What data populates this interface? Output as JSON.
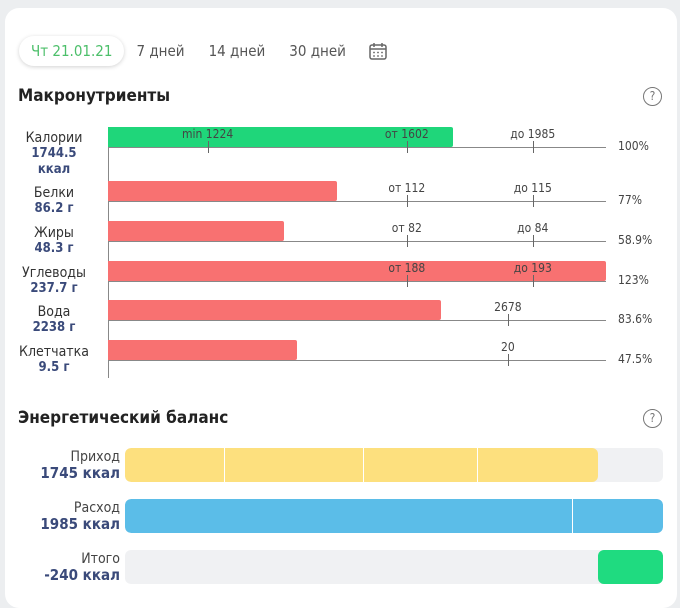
{
  "tabs": [
    {
      "label": "Чт 21.01.21",
      "active": true
    },
    {
      "label": "7 дней"
    },
    {
      "label": "14 дней"
    },
    {
      "label": "30 дней"
    }
  ],
  "macros": {
    "title": "Макронутриенты",
    "help": "?",
    "rows": [
      {
        "name": "Калории",
        "value": "1744.5 ккал",
        "pct": "100%",
        "fill": 0.693,
        "color": "#1fd67a",
        "ticks": [
          {
            "label": "min 1224",
            "pos": 0.2
          },
          {
            "label": "от 1602",
            "pos": 0.6
          },
          {
            "label": "до 1985",
            "pos": 0.853
          }
        ]
      },
      {
        "name": "Белки",
        "value": "86.2 г",
        "pct": "77%",
        "fill": 0.46,
        "color": "#f87171",
        "ticks": [
          {
            "label": "от 112",
            "pos": 0.6
          },
          {
            "label": "до 115",
            "pos": 0.853
          }
        ]
      },
      {
        "name": "Жиры",
        "value": "48.3 г",
        "pct": "58.9%",
        "fill": 0.353,
        "color": "#f87171",
        "ticks": [
          {
            "label": "от 82",
            "pos": 0.6
          },
          {
            "label": "до 84",
            "pos": 0.853
          }
        ]
      },
      {
        "name": "Углеводы",
        "value": "237.7 г",
        "pct": "123%",
        "fill": 1.0,
        "color": "#f87171",
        "ticks": [
          {
            "label": "от 188",
            "pos": 0.6
          },
          {
            "label": "до 193",
            "pos": 0.853
          }
        ]
      },
      {
        "name": "Вода",
        "value": "2238 г",
        "pct": "83.6%",
        "fill": 0.669,
        "color": "#f87171",
        "ticks": [
          {
            "label": "2678",
            "pos": 0.803
          }
        ]
      },
      {
        "name": "Клетчатка",
        "value": "9.5 г",
        "pct": "47.5%",
        "fill": 0.38,
        "color": "#f87171",
        "ticks": [
          {
            "label": "20",
            "pos": 0.803
          }
        ]
      }
    ]
  },
  "energy": {
    "title": "Энергетический баланс",
    "help": "?",
    "rows": [
      {
        "name": "Приход",
        "value": "1745 ккал",
        "start": 0,
        "fill": 0.88,
        "color": "#fde07e",
        "dividers": [
          0.184,
          0.442,
          0.654
        ]
      },
      {
        "name": "Расход",
        "value": "1985 ккал",
        "start": 0,
        "fill": 1.0,
        "color": "#5bbde8",
        "dividers": [
          0.83
        ]
      },
      {
        "name": "Итого",
        "value": "-240 ккал",
        "start": 0.88,
        "fill": 0.12,
        "color": "#1fdb80",
        "dividers": []
      }
    ]
  }
}
